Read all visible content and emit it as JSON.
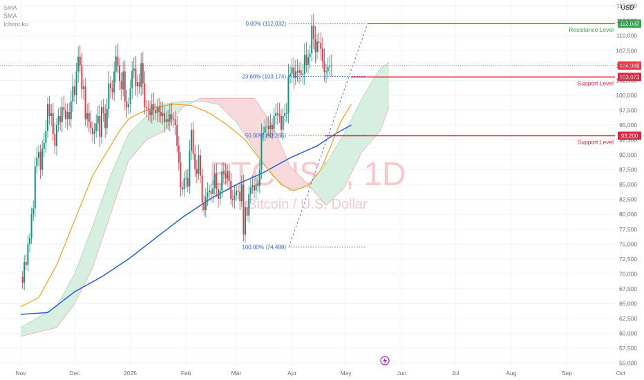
{
  "indicators": [
    "SMA",
    "SMA",
    "Ichimoku"
  ],
  "currency": "USD",
  "watermark": {
    "symbol": "BTCUSD, 1D",
    "name": "Bitcoin / U.S. Dollar"
  },
  "colors": {
    "bull": "#089981",
    "bear": "#f23645",
    "sma_fast": "#f5a623",
    "sma_slow": "#2a5fd6",
    "cloud_bull": "#d7efe0",
    "cloud_bear": "#f8d9dc",
    "resistance": "#2ea84a",
    "support": "#e0253f",
    "fib": "#2962ff",
    "grid": "#f0f3fa"
  },
  "chart_data": {
    "type": "candlestick",
    "y_ticks": [
      55000,
      57500,
      60000,
      62500,
      65000,
      67500,
      70000,
      72500,
      75000,
      77500,
      80000,
      82500,
      85000,
      87500,
      90000,
      92500,
      95000,
      97500,
      100000,
      102500,
      105000,
      107500,
      110000,
      112500,
      115000
    ],
    "ylim": [
      54500,
      116000
    ],
    "x_tick_labels": [
      "Nov",
      "Dec",
      "2025",
      "Feb",
      "Mar",
      "Apr",
      "May",
      "Jun",
      "Jul",
      "Aug",
      "Sep",
      "Oct"
    ],
    "x_tick_days": [
      0,
      30,
      61,
      92,
      120,
      151,
      181,
      212,
      242,
      273,
      304,
      334
    ],
    "series_close": [
      69500,
      68500,
      72000,
      71500,
      75000,
      76000,
      80000,
      81000,
      88000,
      89500,
      90500,
      87500,
      91000,
      92000,
      94000,
      98500,
      96500,
      97000,
      93500,
      91500,
      95000,
      96500,
      95500,
      98000,
      97500,
      96000,
      97200,
      96000,
      99000,
      101500,
      100000,
      104000,
      106500,
      105000,
      101000,
      101500,
      96000,
      97000,
      95500,
      94500,
      93500,
      94000,
      95300,
      96500,
      93000,
      98000,
      97000,
      94500,
      97700,
      102000,
      101200,
      100500,
      104000,
      106500,
      105000,
      102400,
      101000,
      104000,
      99000,
      98000,
      98500,
      101200,
      104100,
      104500,
      101500,
      102200,
      101400,
      105400,
      102000,
      98000,
      97800,
      97500,
      96700,
      98500,
      97500,
      97000,
      98000,
      97200,
      96500,
      97000,
      95500,
      96000,
      95600,
      96800,
      96000,
      96000,
      95000,
      91500,
      88700,
      84500,
      84200,
      86000,
      86100,
      84700,
      90700,
      94200,
      90200,
      87600,
      86800,
      89900,
      86500,
      82000,
      80700,
      82900,
      83700,
      84000,
      83400,
      84400,
      86800,
      84200,
      82600,
      84000,
      87200,
      86900,
      86000,
      87300,
      85600,
      82600,
      82400,
      83200,
      84000,
      83800,
      82200,
      85000,
      76600,
      81200,
      79800,
      83400,
      84500,
      84900,
      84000,
      85200,
      84800,
      87500,
      93400,
      93700,
      94700,
      94800,
      94300,
      95000,
      94300,
      96500,
      97000,
      96800,
      96500,
      94200,
      96500,
      97000,
      97000,
      103200,
      103600,
      104700,
      102900,
      104000,
      103800,
      104200,
      103400,
      103600,
      106800,
      105100,
      106400,
      107000,
      111700,
      109400,
      107300,
      109000,
      108800,
      107800,
      105700,
      103900,
      104000,
      104800,
      105000,
      104989
    ],
    "sma_50": [
      [
        0,
        64500
      ],
      [
        10,
        66000
      ],
      [
        20,
        71500
      ],
      [
        30,
        79000
      ],
      [
        40,
        86500
      ],
      [
        50,
        91500
      ],
      [
        55,
        94000
      ],
      [
        60,
        96000
      ],
      [
        66,
        97000
      ],
      [
        75,
        98000
      ],
      [
        85,
        98500
      ],
      [
        95,
        98300
      ],
      [
        105,
        97000
      ],
      [
        115,
        95000
      ],
      [
        125,
        92500
      ],
      [
        135,
        88500
      ],
      [
        145,
        85000
      ],
      [
        152,
        84000
      ],
      [
        160,
        84800
      ],
      [
        167,
        87500
      ],
      [
        172,
        91000
      ],
      [
        178,
        95500
      ],
      [
        184,
        98500
      ]
    ],
    "sma_200": [
      [
        0,
        63200
      ],
      [
        15,
        63500
      ],
      [
        30,
        67000
      ],
      [
        45,
        69500
      ],
      [
        60,
        72500
      ],
      [
        75,
        76000
      ],
      [
        90,
        79500
      ],
      [
        105,
        82500
      ],
      [
        120,
        85000
      ],
      [
        135,
        87000
      ],
      [
        150,
        89500
      ],
      [
        165,
        91500
      ],
      [
        175,
        93500
      ],
      [
        184,
        95000
      ]
    ],
    "cloud": {
      "span_a": [
        [
          0,
          61000
        ],
        [
          20,
          64500
        ],
        [
          30,
          70000
        ],
        [
          40,
          78000
        ],
        [
          50,
          86500
        ],
        [
          60,
          93500
        ],
        [
          70,
          96500
        ],
        [
          80,
          98500
        ],
        [
          90,
          99000
        ],
        [
          100,
          99000
        ],
        [
          110,
          98500
        ],
        [
          120,
          95500
        ],
        [
          130,
          91000
        ],
        [
          140,
          86500
        ],
        [
          150,
          84000
        ],
        [
          160,
          85000
        ],
        [
          170,
          88500
        ],
        [
          180,
          93500
        ],
        [
          190,
          99500
        ],
        [
          200,
          104500
        ],
        [
          205,
          105500
        ]
      ],
      "span_b": [
        [
          0,
          59500
        ],
        [
          20,
          61000
        ],
        [
          30,
          65000
        ],
        [
          40,
          71000
        ],
        [
          50,
          80000
        ],
        [
          60,
          89000
        ],
        [
          70,
          92500
        ],
        [
          80,
          94000
        ],
        [
          90,
          98000
        ],
        [
          100,
          99500
        ],
        [
          110,
          99500
        ],
        [
          120,
          99500
        ],
        [
          130,
          99500
        ],
        [
          140,
          95000
        ],
        [
          150,
          88000
        ],
        [
          160,
          85000
        ],
        [
          170,
          81500
        ],
        [
          180,
          84500
        ],
        [
          190,
          90500
        ],
        [
          200,
          94000
        ],
        [
          205,
          98000
        ]
      ]
    },
    "fib_levels": [
      {
        "label": "0.00% (112,032)",
        "value": 112032
      },
      {
        "label": "23.60% (103,174)",
        "value": 103174
      },
      {
        "label": "50.00% (93,265)",
        "value": 93265
      },
      {
        "label": "100.00% (74,499)",
        "value": 74499
      }
    ],
    "levels": [
      {
        "label": "Resistance Level",
        "value": 112032,
        "tag": "112,032",
        "color": "resistance"
      },
      {
        "label": "Support Level",
        "value": 103073,
        "tag": "103,073",
        "color": "support"
      },
      {
        "label": "Support Level",
        "value": 93200,
        "tag": "93,200",
        "color": "support"
      }
    ],
    "last_price": {
      "value": 104989,
      "tag": "104,989"
    }
  }
}
